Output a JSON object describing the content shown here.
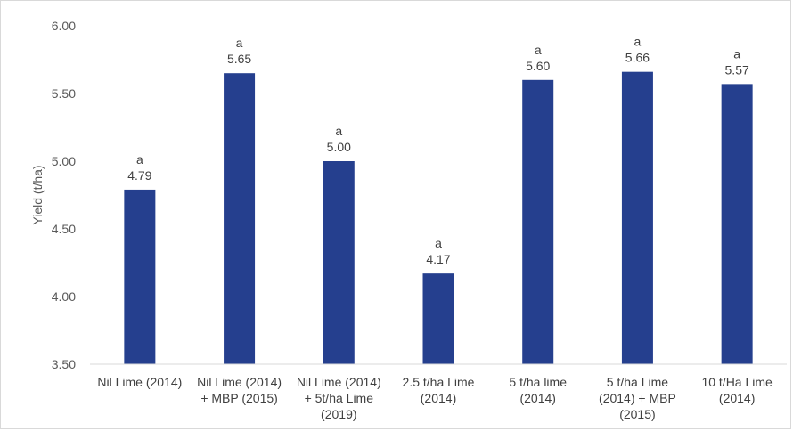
{
  "chart_data": {
    "type": "bar",
    "title": "",
    "xlabel": "",
    "ylabel": "Yield (t/ha)",
    "ylim": [
      3.5,
      6.0
    ],
    "yticks": [
      "3.50",
      "4.00",
      "4.50",
      "5.00",
      "5.50",
      "6.00"
    ],
    "ytick_values": [
      3.5,
      4.0,
      4.5,
      5.0,
      5.5,
      6.0
    ],
    "categories": [
      [
        "Nil Lime (2014)"
      ],
      [
        "Nil Lime (2014)",
        "+ MBP (2015)"
      ],
      [
        "Nil Lime (2014)",
        "+ 5t/ha Lime",
        "(2019)"
      ],
      [
        "2.5 t/ha Lime",
        "(2014)"
      ],
      [
        "5 t/ha lime",
        "(2014)"
      ],
      [
        "5 t/ha Lime",
        "(2014) + MBP",
        "(2015)"
      ],
      [
        "10 t/Ha Lime",
        "(2014)"
      ]
    ],
    "values": [
      4.79,
      5.65,
      5.0,
      4.17,
      5.6,
      5.66,
      5.57
    ],
    "data_labels": [
      "4.79",
      "5.65",
      "5.00",
      "4.17",
      "5.60",
      "5.66",
      "5.57"
    ],
    "significance_letters": [
      "a",
      "a",
      "a",
      "a",
      "a",
      "a",
      "a"
    ],
    "grid": false,
    "legend": "none",
    "bar_color": "#253f8e",
    "axis_color": "#d9d9d9"
  }
}
